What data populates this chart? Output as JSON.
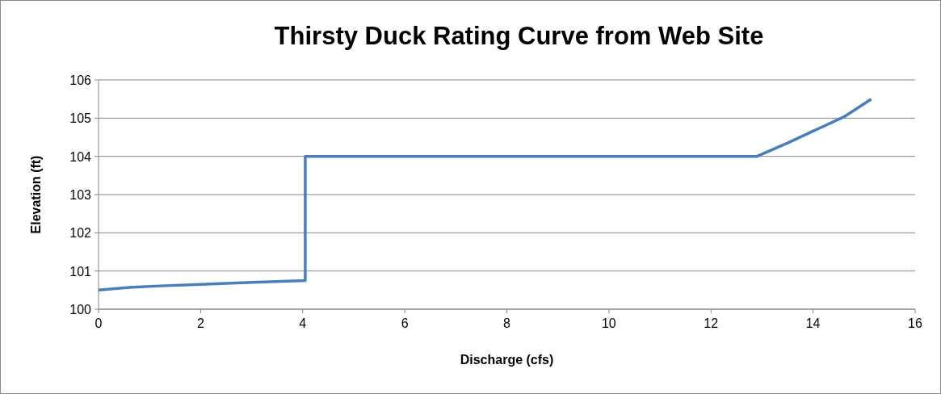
{
  "chart_data": {
    "type": "line",
    "title": "Thirsty Duck Rating Curve from Web Site",
    "xlabel": "Discharge (cfs)",
    "ylabel": "Elevation (ft)",
    "x": [
      0,
      0.6,
      1.2,
      2,
      3,
      4.05,
      4.05,
      6,
      8,
      10,
      12.9,
      13.5,
      14,
      14.6,
      15.14
    ],
    "series": [
      {
        "color": "#4a7ebb",
        "values": [
          100.5,
          100.57,
          100.61,
          100.65,
          100.7,
          100.75,
          104.0,
          104.0,
          104.0,
          104.0,
          104.0,
          104.35,
          104.66,
          105.03,
          105.5
        ]
      }
    ],
    "xlim": [
      0,
      16
    ],
    "xticks": [
      0,
      2,
      4,
      6,
      8,
      10,
      12,
      14,
      16
    ],
    "ylim": [
      100,
      106
    ],
    "yticks": [
      100,
      101,
      102,
      103,
      104,
      105,
      106
    ],
    "grid": "y",
    "marker": "none",
    "line_style": "solid"
  }
}
